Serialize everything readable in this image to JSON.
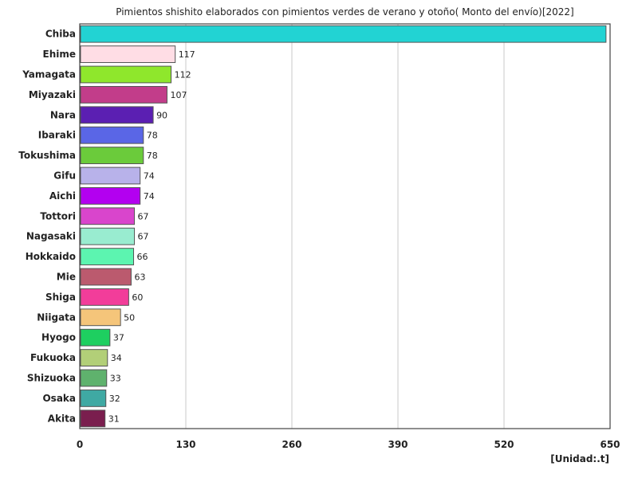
{
  "chart_data": {
    "type": "bar",
    "orientation": "horizontal",
    "title": "Pimientos shishito elaborados con pimientos verdes de verano y otoño( Monto del envío)[2022]",
    "unit": "[Unidad:.t]",
    "xlim": [
      0,
      650
    ],
    "xticks": [
      0,
      130,
      260,
      390,
      520,
      650
    ],
    "grid": true,
    "categories": [
      "Chiba",
      "Ehime",
      "Yamagata",
      "Miyazaki",
      "Nara",
      "Ibaraki",
      "Tokushima",
      "Gifu",
      "Aichi",
      "Tottori",
      "Nagasaki",
      "Hokkaido",
      "Mie",
      "Shiga",
      "Niigata",
      "Hyogo",
      "Fukuoka",
      "Shizuoka",
      "Osaka",
      "Akita"
    ],
    "values": [
      645,
      117,
      112,
      107,
      90,
      78,
      78,
      74,
      74,
      67,
      67,
      66,
      63,
      60,
      50,
      37,
      34,
      33,
      32,
      31
    ],
    "value_labels": [
      "",
      "117",
      "112",
      "107",
      "90",
      "78",
      "78",
      "74",
      "74",
      "67",
      "67",
      "66",
      "63",
      "60",
      "50",
      "37",
      "34",
      "33",
      "32",
      "31"
    ],
    "colors": [
      "#22d3d3",
      "#ffdde5",
      "#8fe72c",
      "#c23d8a",
      "#5b1fb2",
      "#5a66e6",
      "#6bcb3b",
      "#b8b2ea",
      "#b300f0",
      "#d945cc",
      "#99ecd0",
      "#5cf5b0",
      "#bb5a6e",
      "#f23d9a",
      "#f5c57a",
      "#1ecf60",
      "#b2cf78",
      "#5fb26d",
      "#3fa9a3",
      "#7a1e4e"
    ]
  }
}
